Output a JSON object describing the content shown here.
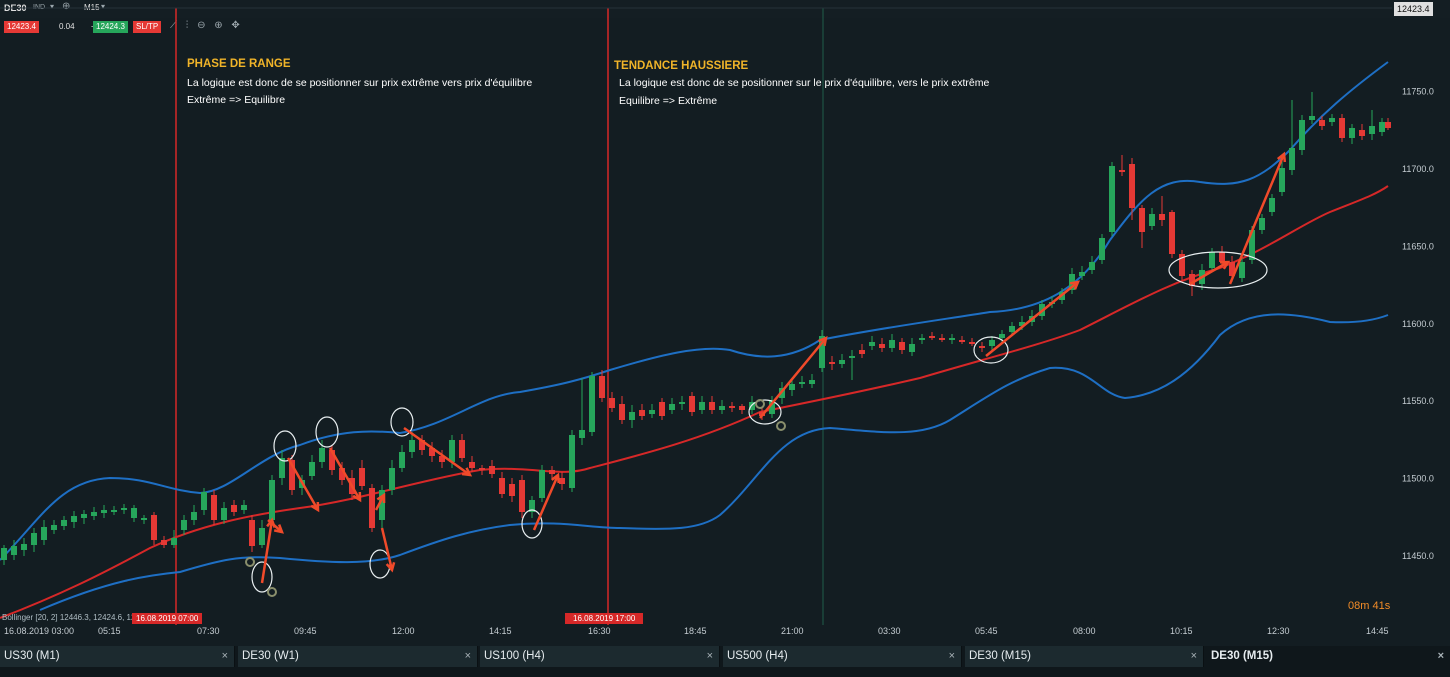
{
  "toolbar": {
    "symbol": "DE30",
    "indicator_tag": "IND",
    "timeframe": "M15",
    "sell_price": "12423.4",
    "spread": "0.04",
    "buy_price": "12424.3",
    "sltp_label": "SL/TP",
    "current_price_label": "12423.4"
  },
  "annotations": {
    "range_title": "PHASE DE RANGE",
    "range_line1": "La logique est donc de se positionner sur prix extrême vers prix d'équilibre",
    "range_line2": "Extrême => Equilibre",
    "trend_title": "TENDANCE HAUSSIERE",
    "trend_line1": "La logique est donc de se positionner sur le prix d'équilibre, vers le prix extrême",
    "trend_line2": "Equilibre => Extrême"
  },
  "indicator_label": "Bollinger [20, 2] 12446.3, 12424.6, 12402.9",
  "marker_1": "16.08.2019 07:00",
  "marker_2": "16.08.2019 17:00",
  "countdown": "08m 41s",
  "colors": {
    "bg": "#131d22",
    "bull": "#26a65b",
    "bear": "#e53935",
    "band": "#1e6fc4",
    "mid": "#d62828",
    "arrow": "#f04a2a"
  },
  "chart_data": {
    "type": "candlestick",
    "yaxis": {
      "ticks": [
        11450.0,
        11500.0,
        11550.0,
        11600.0,
        11650.0,
        11700.0,
        11750.0
      ]
    },
    "xaxis": {
      "ticks": [
        "16.08.2019 03:00",
        "05:15",
        "07:30",
        "09:45",
        "12:00",
        "14:15",
        "16:30",
        "18:45",
        "21:00",
        "03:30",
        "05:45",
        "08:00",
        "10:15",
        "12:30",
        "14:45"
      ]
    }
  },
  "tabs": [
    {
      "label": "US30 (M1)",
      "close": "×"
    },
    {
      "label": "DE30 (W1)",
      "close": "×"
    },
    {
      "label": "US100 (H4)",
      "close": "×"
    },
    {
      "label": "US500 (H4)",
      "close": "×"
    },
    {
      "label": "DE30 (M15)",
      "close": "×"
    },
    {
      "label": "DE30 (M15)",
      "close": "×"
    }
  ]
}
